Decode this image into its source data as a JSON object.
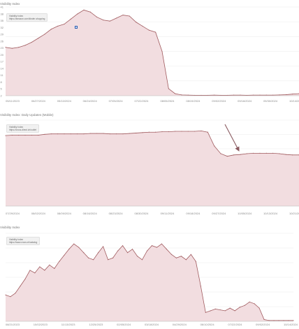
{
  "colors": {
    "line": "#a05a5e",
    "fill": "#f2dde0",
    "grid": "#e6e6e6",
    "axis_text": "#888888",
    "marker": "#2a5db0"
  },
  "chart_data": [
    {
      "type": "area",
      "title": "Visibility Index",
      "legend": {
        "line1": "Visibility Index",
        "line2": "https://amazon.com/kinder-shopping"
      },
      "x_ticks": [
        "05/11/2023",
        "06/27/2024",
        "05/10/2024",
        "06/24/2024",
        "07/05/2024",
        "07/22/2024",
        "08/05/2024",
        "08/19/2024",
        "09/02/2024",
        "09/16/2024",
        "09/30/2024",
        "10/14/2024"
      ],
      "y_ticks": [
        "41",
        "38",
        "35",
        "32",
        "29",
        "26",
        "23",
        "20",
        "17",
        "14",
        "11",
        "8",
        "5",
        "2"
      ],
      "ylim": [
        0,
        44
      ],
      "values": [
        24,
        23.5,
        24,
        25,
        26.5,
        28.5,
        30.5,
        33,
        34.5,
        35.5,
        38,
        40.5,
        42.5,
        41.5,
        39,
        37.5,
        37,
        38.5,
        40,
        39.5,
        36.5,
        34.5,
        32.5,
        31.5,
        22,
        3.5,
        1,
        0.4,
        0.3,
        0.2,
        0.2,
        0.2,
        0.3,
        0.2,
        0.2,
        0.3,
        0.3,
        0.2,
        0.3,
        0.3,
        0.3,
        0.3,
        0.4,
        0.5,
        0.8,
        1
      ]
    },
    {
      "type": "area",
      "title": "Visibility Index: Daily Updates (Mobile)",
      "legend": {
        "line1": "Visibility Index",
        "line2": "https://crocs-direct.ch/outlet"
      },
      "x_ticks": [
        "07/29/2024",
        "08/02/2024",
        "08/09/2024",
        "08/16/2024",
        "08/23/2024",
        "08/30/2024",
        "09/11/2024",
        "09/18/2024",
        "09/27/2024",
        "10/05/2024",
        "10/13/2024",
        "10/21/2024"
      ],
      "ylim": [
        0,
        100
      ],
      "values": [
        82,
        82.5,
        82.5,
        82.5,
        82.5,
        82.5,
        83.5,
        84,
        84,
        84,
        84,
        84,
        84,
        84.5,
        84.5,
        84.5,
        84,
        84,
        84,
        84.5,
        85,
        85.5,
        86,
        86,
        86.5,
        86.5,
        87,
        87,
        87,
        87,
        87.5,
        86,
        70,
        61,
        58,
        59.5,
        60,
        61,
        61.5,
        61.5,
        61.5,
        61.5,
        61,
        60,
        59.5,
        59.5
      ],
      "annotation": "arrow"
    },
    {
      "type": "area",
      "title": "Visibility Index",
      "legend": {
        "line1": "Visibility Index",
        "line2": "https://www.crocs.ch/catalog"
      },
      "x_ticks": [
        "08/21/2023",
        "10/02/2023",
        "11/13/2023",
        "12/25/2023",
        "02/05/2024",
        "03/18/2024",
        "04/29/2024",
        "06/10/2024",
        "07/22/2024",
        "09/02/2024",
        "10/14/2024"
      ],
      "ylim": [
        0,
        100
      ],
      "values": [
        30,
        28,
        32,
        40,
        48,
        58,
        55,
        62,
        58,
        64,
        60,
        68,
        75,
        82,
        88,
        84,
        78,
        72,
        70,
        78,
        85,
        70,
        72,
        80,
        86,
        78,
        82,
        74,
        70,
        80,
        86,
        84,
        88,
        82,
        76,
        72,
        74,
        70,
        76,
        68,
        40,
        10,
        12,
        14,
        13,
        12,
        15,
        12,
        16,
        18,
        22,
        20,
        15,
        2,
        1,
        1,
        1,
        1,
        1,
        1
      ]
    }
  ]
}
